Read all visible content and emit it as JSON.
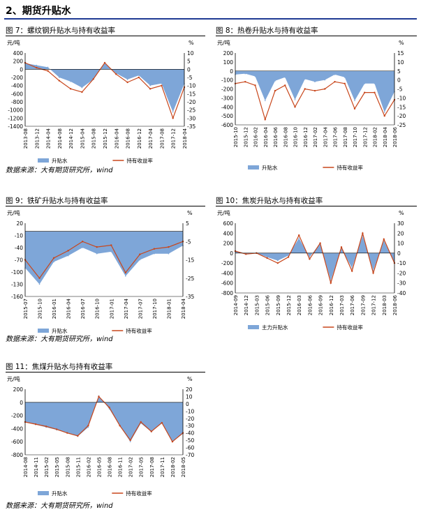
{
  "section": {
    "title": "2、期货升贴水"
  },
  "colors": {
    "spread_fill": "#7ea6d8",
    "yield_line": "#c8461b",
    "rule": "#1f3a93"
  },
  "source_text": "数据来源：大有期货研究所，wind",
  "charts": [
    {
      "title": "图 7：螺纹钢升贴水与持有收益率",
      "left_unit": "元/吨",
      "right_unit": "%",
      "legend": [
        "升贴水",
        "持有收益率"
      ],
      "left_ticks": [
        "400",
        "200",
        "0",
        "-200",
        "-400",
        "-600",
        "-800",
        "-1000",
        "-1200",
        "-1400"
      ],
      "right_ticks": [
        "10",
        "5",
        "0",
        "-5",
        "-10",
        "-15",
        "-20",
        "-25",
        "-30",
        "-35"
      ],
      "dates": [
        "2013-08",
        "2013-12",
        "2014-04",
        "2014-08",
        "2014-12",
        "2015-04",
        "2015-08",
        "2015-12",
        "2016-04",
        "2016-08",
        "2016-12",
        "2017-04",
        "2017-08",
        "2017-12",
        "2018-04"
      ]
    },
    {
      "title": "图 8：热卷升贴水与持有收益率",
      "left_unit": "元/吨",
      "right_unit": "%",
      "legend": [
        "升贴水",
        "持有收益率"
      ],
      "left_ticks": [
        "200",
        "100",
        "0",
        "-100",
        "-200",
        "-300",
        "-400",
        "-500",
        "-600"
      ],
      "right_ticks": [
        "15",
        "10",
        "5",
        "0",
        "-5",
        "-10",
        "-15",
        "-20",
        "-25"
      ],
      "dates": [
        "2015-10",
        "2015-12",
        "2016-02",
        "2016-04",
        "2016-06",
        "2016-08",
        "2016-10",
        "2016-12",
        "2017-02",
        "2017-04",
        "2017-06",
        "2017-08",
        "2017-10",
        "2017-12",
        "2018-02",
        "2018-04",
        "2018-06"
      ]
    },
    {
      "title": "图 9：铁矿升贴水与持有收益率",
      "left_unit": "元/吨",
      "right_unit": "%",
      "legend": [
        "升贴水",
        "持有收益率"
      ],
      "left_ticks": [
        "20",
        "-10",
        "-40",
        "-70",
        "-100",
        "-130",
        "-160"
      ],
      "right_ticks": [
        "5",
        "-5",
        "-15",
        "-25",
        "-35"
      ],
      "dates": [
        "2015-07",
        "2015-10",
        "2016-01",
        "2016-04",
        "2016-07",
        "2016-10",
        "2017-01",
        "2017-04",
        "2017-07",
        "2017-10",
        "2018-01",
        "2018-04"
      ]
    },
    {
      "title": "图 10：焦炭升贴水与持有收益率",
      "left_unit": "元/吨",
      "right_unit": "%",
      "legend": [
        "主力升贴水",
        "持有收益率"
      ],
      "left_ticks": [
        "600",
        "400",
        "200",
        "0",
        "-200",
        "-400",
        "-600",
        "-800"
      ],
      "right_ticks": [
        "30",
        "20",
        "10",
        "0",
        "-10",
        "-20",
        "-30",
        "-40"
      ],
      "dates": [
        "2014-09",
        "2014-12",
        "2015-03",
        "2015-06",
        "2015-09",
        "2015-12",
        "2016-03",
        "2016-06",
        "2016-09",
        "2016-12",
        "2017-03",
        "2017-06",
        "2017-09",
        "2017-12",
        "2018-03",
        "2018-06"
      ]
    },
    {
      "title": "图 11：焦煤升贴水与持有收益率",
      "left_unit": "元/吨",
      "right_unit": "%",
      "legend": [
        "升贴水",
        "持有收益率"
      ],
      "left_ticks": [
        "200",
        "0",
        "-200",
        "-400",
        "-600",
        "-800"
      ],
      "right_ticks": [
        "20",
        "10",
        "0",
        "-10",
        "-20",
        "-30",
        "-40",
        "-50",
        "-60",
        "-70"
      ],
      "dates": [
        "2014-08",
        "2014-11",
        "2015-02",
        "2015-05",
        "2015-08",
        "2015-11",
        "2016-02",
        "2016-05",
        "2016-08",
        "2016-11",
        "2017-02",
        "2017-05",
        "2017-08",
        "2017-11",
        "2018-02",
        "2018-05"
      ]
    }
  ],
  "chart_data": [
    {
      "type": "area",
      "title": "图 7：螺纹钢升贴水与持有收益率",
      "ylim": [
        -1400,
        400
      ],
      "y2lim": [
        -35,
        10
      ],
      "x": [
        "2013-08",
        "2013-12",
        "2014-04",
        "2014-08",
        "2014-12",
        "2015-04",
        "2015-08",
        "2015-12",
        "2016-04",
        "2016-08",
        "2016-12",
        "2017-04",
        "2017-08",
        "2017-12",
        "2018-04"
      ],
      "series": [
        {
          "name": "升贴水",
          "axis": "left",
          "values": [
            150,
            100,
            50,
            -200,
            -300,
            -450,
            -250,
            150,
            -100,
            -250,
            -150,
            -400,
            -350,
            -1050,
            -350
          ]
        },
        {
          "name": "持有收益率",
          "axis": "right",
          "values": [
            4,
            1,
            -1,
            -7,
            -12,
            -14,
            -6,
            4,
            -3,
            -8,
            -5,
            -12,
            -10,
            -30,
            -11
          ]
        }
      ]
    },
    {
      "type": "area",
      "title": "图 8：热卷升贴水与持有收益率",
      "ylim": [
        -600,
        200
      ],
      "y2lim": [
        -25,
        15
      ],
      "x": [
        "2015-10",
        "2015-12",
        "2016-02",
        "2016-04",
        "2016-06",
        "2016-08",
        "2016-10",
        "2016-12",
        "2017-02",
        "2017-04",
        "2017-06",
        "2017-08",
        "2017-10",
        "2017-12",
        "2018-02",
        "2018-04",
        "2018-06"
      ],
      "series": [
        {
          "name": "升贴水",
          "axis": "left",
          "values": [
            -40,
            -30,
            -60,
            -330,
            -110,
            -70,
            -320,
            -90,
            -120,
            -100,
            -40,
            -70,
            -330,
            -140,
            -140,
            -460,
            -230
          ]
        },
        {
          "name": "持有收益率",
          "axis": "right",
          "values": [
            -2,
            -1,
            -3,
            -22,
            -6,
            -3,
            -15,
            -5,
            -6,
            -5,
            -1,
            -2,
            -16,
            -7,
            -7,
            -20,
            -11
          ]
        }
      ]
    },
    {
      "type": "area",
      "title": "图 9：铁矿升贴水与持有收益率",
      "ylim": [
        -160,
        20
      ],
      "y2lim": [
        -35,
        5
      ],
      "x": [
        "2015-07",
        "2015-10",
        "2016-01",
        "2016-04",
        "2016-07",
        "2016-10",
        "2017-01",
        "2017-04",
        "2017-07",
        "2017-10",
        "2018-01",
        "2018-04"
      ],
      "series": [
        {
          "name": "升贴水",
          "axis": "left",
          "values": [
            -90,
            -130,
            -75,
            -60,
            -40,
            -55,
            -50,
            -110,
            -70,
            -55,
            -55,
            -35
          ]
        },
        {
          "name": "持有收益率",
          "axis": "right",
          "values": [
            -15,
            -25,
            -14,
            -10,
            -5,
            -8,
            -7,
            -22,
            -12,
            -9,
            -8,
            -5
          ]
        }
      ]
    },
    {
      "type": "area",
      "title": "图 10：焦炭升贴水与持有收益率",
      "ylim": [
        -800,
        600
      ],
      "y2lim": [
        -40,
        30
      ],
      "x": [
        "2014-09",
        "2014-12",
        "2015-03",
        "2015-06",
        "2015-09",
        "2015-12",
        "2016-03",
        "2016-06",
        "2016-09",
        "2016-12",
        "2017-03",
        "2017-06",
        "2017-09",
        "2017-12",
        "2018-03",
        "2018-06"
      ],
      "series": [
        {
          "name": "主力升贴水",
          "axis": "left",
          "values": [
            40,
            -20,
            0,
            -80,
            -150,
            -50,
            300,
            -80,
            200,
            -550,
            100,
            -300,
            350,
            -350,
            250,
            -200
          ]
        },
        {
          "name": "持有收益率",
          "axis": "right",
          "values": [
            2,
            -1,
            0,
            -5,
            -10,
            -4,
            18,
            -6,
            10,
            -30,
            6,
            -18,
            20,
            -20,
            14,
            -10
          ]
        }
      ]
    },
    {
      "type": "area",
      "title": "图 11：焦煤升贴水与持有收益率",
      "ylim": [
        -800,
        200
      ],
      "y2lim": [
        -70,
        20
      ],
      "x": [
        "2014-08",
        "2014-11",
        "2015-02",
        "2015-05",
        "2015-08",
        "2015-11",
        "2016-02",
        "2016-05",
        "2016-08",
        "2016-11",
        "2017-02",
        "2017-05",
        "2017-08",
        "2017-11",
        "2018-02",
        "2018-05"
      ],
      "series": [
        {
          "name": "升贴水",
          "axis": "left",
          "values": [
            -300,
            -340,
            -380,
            -420,
            -470,
            -520,
            -380,
            100,
            -100,
            -360,
            -600,
            -320,
            -450,
            -320,
            -600,
            -480
          ]
        },
        {
          "name": "持有收益率",
          "axis": "right",
          "values": [
            -25,
            -28,
            -31,
            -35,
            -40,
            -44,
            -30,
            10,
            -5,
            -30,
            -50,
            -25,
            -38,
            -26,
            -52,
            -40
          ]
        }
      ]
    }
  ]
}
